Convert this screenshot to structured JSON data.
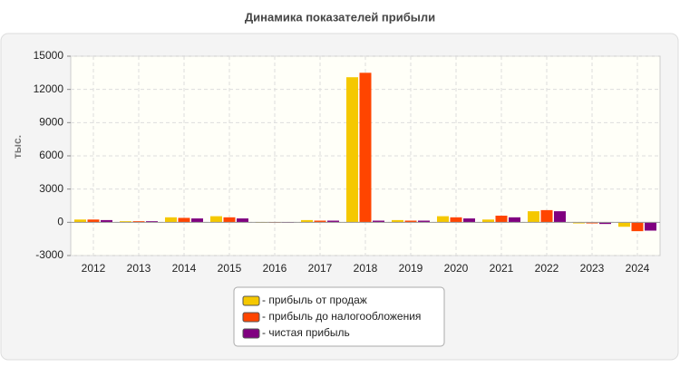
{
  "chart_data": {
    "type": "bar",
    "title": "Динамика показателей прибыли",
    "y_label": "тыс.",
    "categories": [
      "2012",
      "2013",
      "2014",
      "2015",
      "2016",
      "2017",
      "2018",
      "2019",
      "2020",
      "2021",
      "2022",
      "2023",
      "2024"
    ],
    "series": [
      {
        "name": "- прибыль от продаж",
        "color": "#f5c800",
        "values": [
          250,
          100,
          450,
          550,
          -50,
          200,
          13100,
          200,
          550,
          250,
          1000,
          -100,
          -400
        ]
      },
      {
        "name": "- прибыль до налогообложения",
        "color": "#ff4500",
        "values": [
          250,
          100,
          400,
          450,
          -50,
          150,
          13500,
          150,
          450,
          600,
          1100,
          -100,
          -800
        ]
      },
      {
        "name": "- чистая прибыль",
        "color": "#800080",
        "values": [
          200,
          100,
          350,
          350,
          -50,
          150,
          150,
          150,
          350,
          450,
          1000,
          -150,
          -750
        ]
      }
    ],
    "ylim": [
      -3000,
      15000
    ],
    "yticks": [
      -3000,
      0,
      3000,
      6000,
      9000,
      12000,
      15000
    ],
    "grid": true
  }
}
